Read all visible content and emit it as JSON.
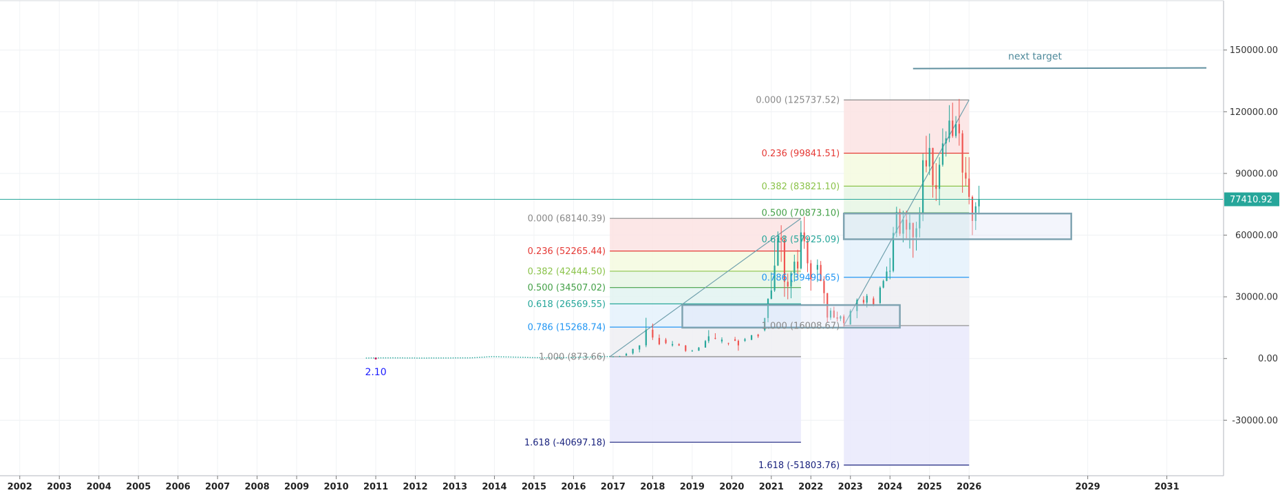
{
  "chart_data": {
    "type": "candlestick",
    "y_axis": {
      "position": "right",
      "range": [
        -57000,
        174000
      ],
      "ticks": [
        {
          "value": 150000,
          "label": "150000.00"
        },
        {
          "value": 120000,
          "label": "120000.00"
        },
        {
          "value": 90000,
          "label": "90000.00"
        },
        {
          "value": 60000,
          "label": "60000.00"
        },
        {
          "value": 30000,
          "label": "30000.00"
        },
        {
          "value": 0,
          "label": "0.00"
        },
        {
          "value": -30000,
          "label": "-30000.00"
        }
      ]
    },
    "x_axis": {
      "range": [
        "2001-07",
        "2032-06"
      ],
      "ticks": [
        {
          "date": "2002-01",
          "label": "2002"
        },
        {
          "date": "2003-01",
          "label": "2003"
        },
        {
          "date": "2004-01",
          "label": "2004"
        },
        {
          "date": "2005-01",
          "label": "2005"
        },
        {
          "date": "2006-01",
          "label": "2006"
        },
        {
          "date": "2007-01",
          "label": "2007"
        },
        {
          "date": "2008-01",
          "label": "2008"
        },
        {
          "date": "2009-01",
          "label": "2009"
        },
        {
          "date": "2010-01",
          "label": "2010"
        },
        {
          "date": "2011-01",
          "label": "2011"
        },
        {
          "date": "2012-01",
          "label": "2012"
        },
        {
          "date": "2013-01",
          "label": "2013"
        },
        {
          "date": "2014-01",
          "label": "2014"
        },
        {
          "date": "2015-01",
          "label": "2015"
        },
        {
          "date": "2016-01",
          "label": "2016"
        },
        {
          "date": "2017-01",
          "label": "2017"
        },
        {
          "date": "2018-01",
          "label": "2018"
        },
        {
          "date": "2019-01",
          "label": "2019"
        },
        {
          "date": "2020-01",
          "label": "2020"
        },
        {
          "date": "2021-01",
          "label": "2021"
        },
        {
          "date": "2022-01",
          "label": "2022"
        },
        {
          "date": "2023-01",
          "label": "2023"
        },
        {
          "date": "2024-01",
          "label": "2024"
        },
        {
          "date": "2025-01",
          "label": "2025"
        },
        {
          "date": "2026-01",
          "label": "2026"
        },
        {
          "date": "2029-01",
          "label": "2029"
        },
        {
          "date": "2031-01",
          "label": "2031"
        }
      ]
    },
    "grid": true,
    "current_price": {
      "value": 77410.92,
      "label": "77410.92",
      "color": "#26a69a"
    },
    "low_label": {
      "date": "2011-01",
      "value": -1500,
      "label": "2.10",
      "color": "#1a1aff"
    },
    "fib_retracements": [
      {
        "name": "fib-2017-2021",
        "x_start": "2016-12",
        "x_end": "2021-10",
        "label_side": "left",
        "levels": [
          {
            "level": "0.000",
            "value": 68140.39,
            "label": "0.000 (68140.39)",
            "color": "#888888"
          },
          {
            "level": "0.236",
            "value": 52265.44,
            "label": "0.236 (52265.44)",
            "color": "#e53935"
          },
          {
            "level": "0.382",
            "value": 42444.5,
            "label": "0.382 (42444.50)",
            "color": "#8bc34a"
          },
          {
            "level": "0.500",
            "value": 34507.02,
            "label": "0.500 (34507.02)",
            "color": "#43a047"
          },
          {
            "level": "0.618",
            "value": 26569.55,
            "label": "0.618 (26569.55)",
            "color": "#26a69a"
          },
          {
            "level": "0.786",
            "value": 15268.74,
            "label": "0.786 (15268.74)",
            "color": "#2196f3"
          },
          {
            "level": "1.000",
            "value": 873.66,
            "label": "1.000 (873.66)",
            "color": "#888888"
          },
          {
            "level": "1.618",
            "value": -40697.18,
            "label": "1.618 (-40697.18)",
            "color": "#1a237e"
          }
        ]
      },
      {
        "name": "fib-2022-2025",
        "x_start": "2022-11",
        "x_end": "2026-01",
        "label_side": "left",
        "levels": [
          {
            "level": "0.000",
            "value": 125737.52,
            "label": "0.000 (125737.52)",
            "color": "#888888"
          },
          {
            "level": "0.236",
            "value": 99841.51,
            "label": "0.236 (99841.51)",
            "color": "#e53935"
          },
          {
            "level": "0.382",
            "value": 83821.1,
            "label": "0.382 (83821.10)",
            "color": "#8bc34a"
          },
          {
            "level": "0.500",
            "value": 70873.1,
            "label": "0.500 (70873.10)",
            "color": "#43a047"
          },
          {
            "level": "0.618",
            "value": 57925.09,
            "label": "0.618 (57925.09)",
            "color": "#26a69a"
          },
          {
            "level": "0.786",
            "value": 39490.65,
            "label": "0.786 (39490.65)",
            "color": "#2196f3"
          },
          {
            "level": "1.000",
            "value": 16008.67,
            "label": "1.000 (16008.67)",
            "color": "#888888"
          },
          {
            "level": "1.618",
            "value": -51803.76,
            "label": "1.618 (-51803.76)",
            "color": "#1a237e"
          }
        ]
      }
    ],
    "boxes": [
      {
        "name": "support-box-2019",
        "x_start": "2018-10",
        "x_end": "2024-04",
        "y_top": 26000,
        "y_bottom": 15000,
        "color": "#7fa3b1"
      },
      {
        "name": "support-box-2025",
        "x_start": "2022-11",
        "x_end": "2028-08",
        "y_top": 70500,
        "y_bottom": 58000,
        "color": "#7fa3b1"
      }
    ],
    "trend_lines": [
      {
        "name": "trend-line-2017-2021",
        "from": {
          "date": "2016-12",
          "value": 873.66
        },
        "to": {
          "date": "2021-10",
          "value": 68140.39
        },
        "color": "#6fa0ad"
      },
      {
        "name": "trend-line-2022-2025",
        "from": {
          "date": "2022-11",
          "value": 16008.67
        },
        "to": {
          "date": "2026-01",
          "value": 125737.52
        },
        "color": "#6fa0ad"
      }
    ],
    "target_line": {
      "from": {
        "date": "2024-08",
        "value": 141000
      },
      "to": {
        "date": "2032-01",
        "value": 141300
      },
      "color": "#5f8f9f"
    },
    "annotations": [
      {
        "text": "next target",
        "date": "2027-09",
        "value": 147000,
        "color": "#4f8a9b"
      }
    ],
    "candles": [
      {
        "t": "2017-01",
        "o": 900,
        "h": 1100,
        "l": 800,
        "c": 970
      },
      {
        "t": "2017-03",
        "o": 1000,
        "h": 1300,
        "l": 900,
        "c": 1100
      },
      {
        "t": "2017-05",
        "o": 1400,
        "h": 2700,
        "l": 1300,
        "c": 2300
      },
      {
        "t": "2017-07",
        "o": 2500,
        "h": 4700,
        "l": 1900,
        "c": 4700
      },
      {
        "t": "2017-09",
        "o": 4400,
        "h": 6400,
        "l": 3000,
        "c": 6400
      },
      {
        "t": "2017-11",
        "o": 6400,
        "h": 19800,
        "l": 5500,
        "c": 14000
      },
      {
        "t": "2018-01",
        "o": 14000,
        "h": 17000,
        "l": 9000,
        "c": 10200
      },
      {
        "t": "2018-03",
        "o": 10000,
        "h": 11700,
        "l": 6500,
        "c": 6900
      },
      {
        "t": "2018-05",
        "o": 9200,
        "h": 10000,
        "l": 7000,
        "c": 7500
      },
      {
        "t": "2018-07",
        "o": 6400,
        "h": 8500,
        "l": 5800,
        "c": 7000
      },
      {
        "t": "2018-09",
        "o": 7000,
        "h": 7400,
        "l": 6100,
        "c": 6300
      },
      {
        "t": "2018-11",
        "o": 6300,
        "h": 6600,
        "l": 3200,
        "c": 3700
      },
      {
        "t": "2019-01",
        "o": 3700,
        "h": 4200,
        "l": 3300,
        "c": 3800
      },
      {
        "t": "2019-03",
        "o": 3800,
        "h": 5600,
        "l": 3700,
        "c": 5300
      },
      {
        "t": "2019-05",
        "o": 5300,
        "h": 9000,
        "l": 5300,
        "c": 8500
      },
      {
        "t": "2019-06",
        "o": 8500,
        "h": 13800,
        "l": 7500,
        "c": 10800
      },
      {
        "t": "2019-08",
        "o": 10000,
        "h": 12300,
        "l": 9300,
        "c": 9600
      },
      {
        "t": "2019-10",
        "o": 8300,
        "h": 10300,
        "l": 7400,
        "c": 9200
      },
      {
        "t": "2019-12",
        "o": 7500,
        "h": 7700,
        "l": 6400,
        "c": 7200
      },
      {
        "t": "2020-02",
        "o": 9300,
        "h": 10500,
        "l": 8500,
        "c": 8600
      },
      {
        "t": "2020-03",
        "o": 8600,
        "h": 9200,
        "l": 3800,
        "c": 6400
      },
      {
        "t": "2020-05",
        "o": 8600,
        "h": 10000,
        "l": 8100,
        "c": 9400
      },
      {
        "t": "2020-07",
        "o": 9100,
        "h": 11500,
        "l": 8900,
        "c": 11300
      },
      {
        "t": "2020-09",
        "o": 11600,
        "h": 12000,
        "l": 10000,
        "c": 10800
      },
      {
        "t": "2020-11",
        "o": 13800,
        "h": 19800,
        "l": 13200,
        "c": 19700
      },
      {
        "t": "2020-12",
        "o": 19700,
        "h": 29300,
        "l": 17600,
        "c": 29000
      },
      {
        "t": "2021-01",
        "o": 29000,
        "h": 41900,
        "l": 28800,
        "c": 33100
      },
      {
        "t": "2021-02",
        "o": 33100,
        "h": 58300,
        "l": 32400,
        "c": 45200
      },
      {
        "t": "2021-03",
        "o": 45200,
        "h": 61800,
        "l": 45000,
        "c": 58800
      },
      {
        "t": "2021-04",
        "o": 58800,
        "h": 64800,
        "l": 47000,
        "c": 57700
      },
      {
        "t": "2021-05",
        "o": 57700,
        "h": 59500,
        "l": 30000,
        "c": 37300
      },
      {
        "t": "2021-06",
        "o": 37300,
        "h": 41300,
        "l": 28800,
        "c": 35000
      },
      {
        "t": "2021-07",
        "o": 35000,
        "h": 42400,
        "l": 29300,
        "c": 41500
      },
      {
        "t": "2021-08",
        "o": 41500,
        "h": 50500,
        "l": 37300,
        "c": 47100
      },
      {
        "t": "2021-09",
        "o": 47100,
        "h": 52900,
        "l": 39600,
        "c": 43800
      },
      {
        "t": "2021-10",
        "o": 43800,
        "h": 67000,
        "l": 43300,
        "c": 61300
      },
      {
        "t": "2021-11",
        "o": 61300,
        "h": 69000,
        "l": 53300,
        "c": 57000
      },
      {
        "t": "2021-12",
        "o": 57000,
        "h": 59100,
        "l": 42000,
        "c": 46300
      },
      {
        "t": "2022-01",
        "o": 46300,
        "h": 47900,
        "l": 33000,
        "c": 38500
      },
      {
        "t": "2022-03",
        "o": 43200,
        "h": 48200,
        "l": 37200,
        "c": 45500
      },
      {
        "t": "2022-04",
        "o": 45500,
        "h": 47400,
        "l": 37600,
        "c": 37700
      },
      {
        "t": "2022-05",
        "o": 37700,
        "h": 40000,
        "l": 26700,
        "c": 31800
      },
      {
        "t": "2022-06",
        "o": 31800,
        "h": 31900,
        "l": 17600,
        "c": 19900
      },
      {
        "t": "2022-07",
        "o": 19900,
        "h": 24600,
        "l": 18800,
        "c": 23300
      },
      {
        "t": "2022-08",
        "o": 23300,
        "h": 25200,
        "l": 19600,
        "c": 20000
      },
      {
        "t": "2022-09",
        "o": 20000,
        "h": 22800,
        "l": 18100,
        "c": 19400
      },
      {
        "t": "2022-10",
        "o": 19400,
        "h": 21000,
        "l": 18200,
        "c": 20500
      },
      {
        "t": "2022-11",
        "o": 20500,
        "h": 21400,
        "l": 15500,
        "c": 17200
      },
      {
        "t": "2023-01",
        "o": 16500,
        "h": 23900,
        "l": 16500,
        "c": 23100
      },
      {
        "t": "2023-03",
        "o": 23100,
        "h": 29200,
        "l": 19600,
        "c": 28500
      },
      {
        "t": "2023-05",
        "o": 28500,
        "h": 30300,
        "l": 25800,
        "c": 27200
      },
      {
        "t": "2023-06",
        "o": 27200,
        "h": 31400,
        "l": 24800,
        "c": 30500
      },
      {
        "t": "2023-08",
        "o": 29200,
        "h": 30200,
        "l": 25400,
        "c": 26000
      },
      {
        "t": "2023-10",
        "o": 27000,
        "h": 35200,
        "l": 26500,
        "c": 34500
      },
      {
        "t": "2023-11",
        "o": 34500,
        "h": 38400,
        "l": 34100,
        "c": 37700
      },
      {
        "t": "2023-12",
        "o": 37700,
        "h": 44700,
        "l": 37600,
        "c": 42300
      },
      {
        "t": "2024-01",
        "o": 42300,
        "h": 48900,
        "l": 38500,
        "c": 42600
      },
      {
        "t": "2024-02",
        "o": 42600,
        "h": 64000,
        "l": 41900,
        "c": 61100
      },
      {
        "t": "2024-03",
        "o": 61100,
        "h": 73800,
        "l": 59000,
        "c": 71300
      },
      {
        "t": "2024-04",
        "o": 71300,
        "h": 72800,
        "l": 59600,
        "c": 60700
      },
      {
        "t": "2024-05",
        "o": 60700,
        "h": 71900,
        "l": 56500,
        "c": 67500
      },
      {
        "t": "2024-06",
        "o": 67500,
        "h": 71900,
        "l": 58400,
        "c": 62700
      },
      {
        "t": "2024-07",
        "o": 62700,
        "h": 70000,
        "l": 53500,
        "c": 66000
      },
      {
        "t": "2024-08",
        "o": 66000,
        "h": 65000,
        "l": 49000,
        "c": 59000
      },
      {
        "t": "2024-09",
        "o": 59000,
        "h": 66500,
        "l": 52500,
        "c": 63300
      },
      {
        "t": "2024-10",
        "o": 63300,
        "h": 73600,
        "l": 58900,
        "c": 70200
      },
      {
        "t": "2024-11",
        "o": 70200,
        "h": 99600,
        "l": 66800,
        "c": 96400
      },
      {
        "t": "2024-12",
        "o": 96400,
        "h": 108300,
        "l": 90500,
        "c": 93400
      },
      {
        "t": "2025-01",
        "o": 93400,
        "h": 109400,
        "l": 89200,
        "c": 102400
      },
      {
        "t": "2025-02",
        "o": 102400,
        "h": 102500,
        "l": 78200,
        "c": 84300
      },
      {
        "t": "2025-03",
        "o": 84300,
        "h": 95000,
        "l": 76600,
        "c": 82500
      },
      {
        "t": "2025-04",
        "o": 82500,
        "h": 97900,
        "l": 74500,
        "c": 94200
      },
      {
        "t": "2025-05",
        "o": 94200,
        "h": 111900,
        "l": 93300,
        "c": 104600
      },
      {
        "t": "2025-06",
        "o": 104600,
        "h": 110500,
        "l": 98200,
        "c": 107100
      },
      {
        "t": "2025-07",
        "o": 107100,
        "h": 123200,
        "l": 105200,
        "c": 115700
      },
      {
        "t": "2025-08",
        "o": 115700,
        "h": 124400,
        "l": 107300,
        "c": 108200
      },
      {
        "t": "2025-09",
        "o": 108200,
        "h": 117900,
        "l": 107200,
        "c": 114000
      },
      {
        "t": "2025-10",
        "o": 114000,
        "h": 126200,
        "l": 103500,
        "c": 109500
      },
      {
        "t": "2025-11",
        "o": 109500,
        "h": 111000,
        "l": 80600,
        "c": 90400
      },
      {
        "t": "2025-12",
        "o": 90400,
        "h": 98000,
        "l": 84000,
        "c": 87500
      },
      {
        "t": "2026-01",
        "o": 87500,
        "h": 97900,
        "l": 75000,
        "c": 78600
      },
      {
        "t": "2026-02",
        "o": 78600,
        "h": 79300,
        "l": 60000,
        "c": 66900
      },
      {
        "t": "2026-03",
        "o": 66900,
        "h": 76000,
        "l": 62500,
        "c": 74000
      },
      {
        "t": "2026-04",
        "o": 74000,
        "h": 84000,
        "l": 70000,
        "c": 77410.92
      }
    ],
    "pre2017_series": [
      {
        "t": "2010-10",
        "v": 200
      },
      {
        "t": "2011-06",
        "v": 300
      },
      {
        "t": "2012-02",
        "v": 200
      },
      {
        "t": "2012-10",
        "v": 250
      },
      {
        "t": "2013-06",
        "v": 300
      },
      {
        "t": "2013-12",
        "v": 900
      },
      {
        "t": "2014-06",
        "v": 700
      },
      {
        "t": "2015-01",
        "v": 400
      },
      {
        "t": "2015-09",
        "v": 350
      },
      {
        "t": "2016-06",
        "v": 700
      },
      {
        "t": "2016-12",
        "v": 950
      }
    ]
  }
}
